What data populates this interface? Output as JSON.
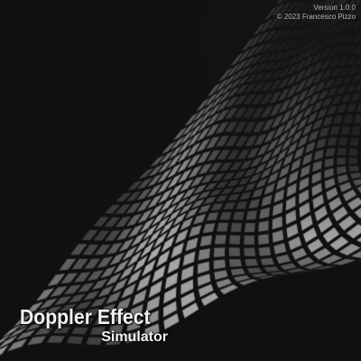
{
  "app": {
    "title_line1": "Doppler Effect",
    "title_line2": "Simulator",
    "version": "Version 1.0.0",
    "copyright": "© 2023 Francesco Pizzo"
  },
  "background": {
    "image": "wavy-tile-grid-surface",
    "tile_color_light": "#9a9a9a",
    "tile_color_dark": "#2e2e2e",
    "gap_color": "#101010"
  }
}
